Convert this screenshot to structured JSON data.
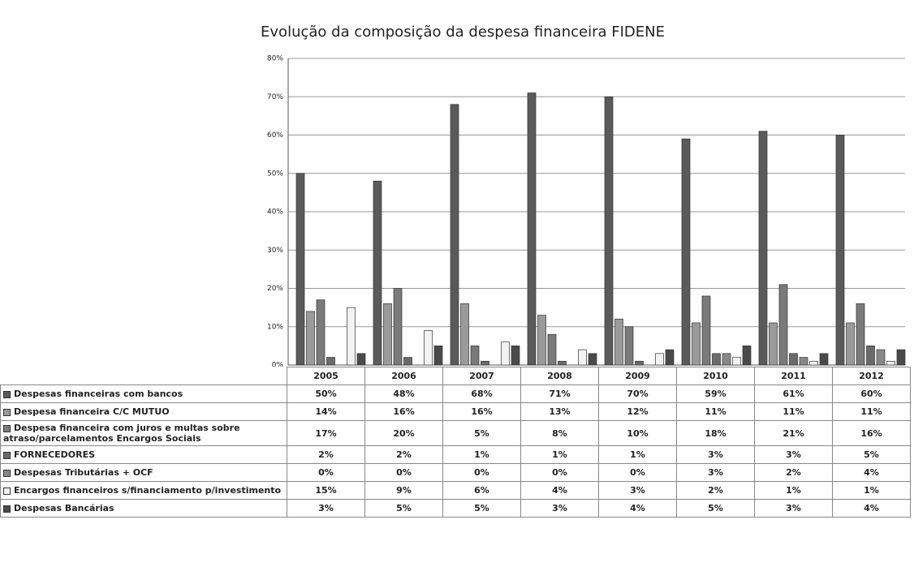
{
  "chart_data": {
    "type": "bar",
    "title": "Evolução da composição da despesa financeira FIDENE",
    "categories": [
      "2005",
      "2006",
      "2007",
      "2008",
      "2009",
      "2010",
      "2011",
      "2012"
    ],
    "ylim": [
      0,
      80
    ],
    "yticks": [
      {
        "value": 0,
        "label": "0%"
      },
      {
        "value": 10,
        "label": "10%"
      },
      {
        "value": 20,
        "label": "20%"
      },
      {
        "value": 30,
        "label": "30%"
      },
      {
        "value": 40,
        "label": "40%"
      },
      {
        "value": 50,
        "label": "50%"
      },
      {
        "value": 60,
        "label": "60%"
      },
      {
        "value": 70,
        "label": "70%"
      },
      {
        "value": 80,
        "label": "80%"
      }
    ],
    "grid": true,
    "series": [
      {
        "name": "Despesas financeiras com bancos",
        "color": "#5a5a5a",
        "values": [
          50,
          48,
          68,
          71,
          70,
          59,
          61,
          60
        ],
        "value_labels": [
          "50%",
          "48%",
          "68%",
          "71%",
          "70%",
          "59%",
          "61%",
          "60%"
        ]
      },
      {
        "name": "Despesa financeira C/C MUTUO",
        "color": "#9a9a9a",
        "values": [
          14,
          16,
          16,
          13,
          12,
          11,
          11,
          11
        ],
        "value_labels": [
          "14%",
          "16%",
          "16%",
          "13%",
          "12%",
          "11%",
          "11%",
          "11%"
        ]
      },
      {
        "name": "Despesa financeira com juros e multas sobre atraso/parcelamentos Encargos Sociais",
        "color": "#7a7a7a",
        "values": [
          17,
          20,
          5,
          8,
          10,
          18,
          21,
          16
        ],
        "value_labels": [
          "17%",
          "20%",
          "5%",
          "8%",
          "10%",
          "18%",
          "21%",
          "16%"
        ]
      },
      {
        "name": "FORNECEDORES",
        "color": "#6a6a6a",
        "values": [
          2,
          2,
          1,
          1,
          1,
          3,
          3,
          5
        ],
        "value_labels": [
          "2%",
          "2%",
          "1%",
          "1%",
          "1%",
          "3%",
          "3%",
          "5%"
        ]
      },
      {
        "name": "Despesas Tributárias + OCF",
        "color": "#888888",
        "values": [
          0,
          0,
          0,
          0,
          0,
          3,
          2,
          4
        ],
        "value_labels": [
          "0%",
          "0%",
          "0%",
          "0%",
          "0%",
          "3%",
          "2%",
          "4%"
        ]
      },
      {
        "name": "Encargos financeiros s/financiamento p/investimento",
        "color": "#f2f2f2",
        "values": [
          15,
          9,
          6,
          4,
          3,
          2,
          1,
          1
        ],
        "value_labels": [
          "15%",
          "9%",
          "6%",
          "4%",
          "3%",
          "2%",
          "1%",
          "1%"
        ]
      },
      {
        "name": "Despesas Bancárias",
        "color": "#4a4a4a",
        "values": [
          3,
          5,
          5,
          3,
          4,
          5,
          3,
          4
        ],
        "value_labels": [
          "3%",
          "5%",
          "5%",
          "3%",
          "4%",
          "5%",
          "3%",
          "4%"
        ]
      }
    ]
  }
}
